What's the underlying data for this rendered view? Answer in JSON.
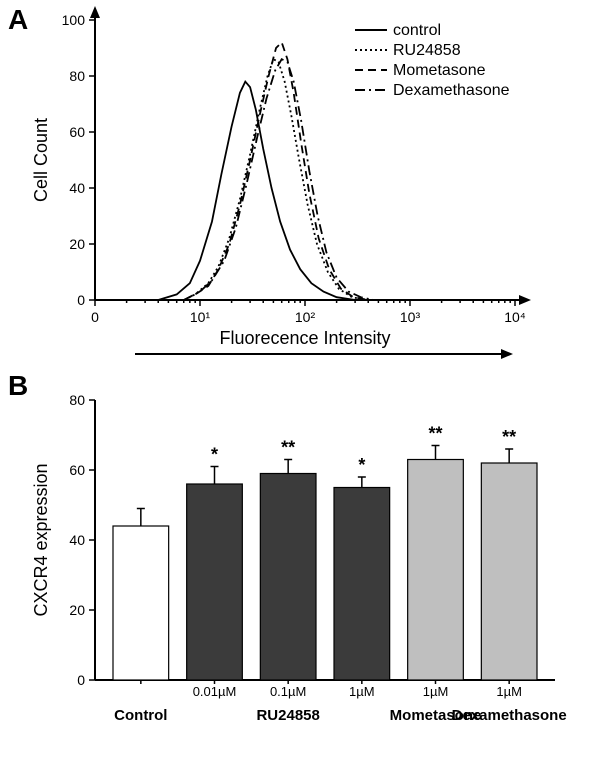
{
  "panelA": {
    "label": "A",
    "type": "line-histogram",
    "x_axis": {
      "title": "Fluorecence Intensity",
      "scale": "log",
      "lim": [
        1,
        10000
      ],
      "ticks": [
        1,
        10,
        100,
        1000,
        10000
      ],
      "tick_labels": [
        "0",
        "10¹",
        "10²",
        "10³",
        "10⁴"
      ]
    },
    "y_axis": {
      "title": "Cell Count",
      "scale": "linear",
      "lim": [
        0,
        100
      ],
      "ticks": [
        0,
        20,
        40,
        60,
        80,
        100
      ]
    },
    "background_color": "#ffffff",
    "axis_color": "#000000",
    "line_width": 1.8,
    "legend": {
      "position": "top-right",
      "items": [
        {
          "label": "control",
          "dash": "solid"
        },
        {
          "label": "RU24858",
          "dash": "dotted"
        },
        {
          "label": "Mometasone",
          "dash": "dashed"
        },
        {
          "label": "Dexamethasone",
          "dash": "dashdot"
        }
      ]
    },
    "series": [
      {
        "name": "control",
        "dash": "solid",
        "color": "#000000",
        "points": [
          [
            4,
            0
          ],
          [
            6,
            2
          ],
          [
            8,
            6
          ],
          [
            10,
            14
          ],
          [
            13,
            28
          ],
          [
            16,
            45
          ],
          [
            20,
            62
          ],
          [
            24,
            74
          ],
          [
            27,
            78
          ],
          [
            30,
            76
          ],
          [
            34,
            68
          ],
          [
            40,
            54
          ],
          [
            48,
            40
          ],
          [
            58,
            28
          ],
          [
            72,
            18
          ],
          [
            90,
            11
          ],
          [
            115,
            6
          ],
          [
            150,
            3
          ],
          [
            200,
            1
          ],
          [
            300,
            0
          ]
        ]
      },
      {
        "name": "RU24858",
        "dash": "dotted",
        "color": "#000000",
        "points": [
          [
            7,
            0
          ],
          [
            9,
            2
          ],
          [
            12,
            6
          ],
          [
            15,
            12
          ],
          [
            19,
            22
          ],
          [
            24,
            36
          ],
          [
            30,
            52
          ],
          [
            37,
            68
          ],
          [
            44,
            80
          ],
          [
            50,
            86
          ],
          [
            56,
            85
          ],
          [
            64,
            78
          ],
          [
            74,
            66
          ],
          [
            88,
            50
          ],
          [
            106,
            34
          ],
          [
            130,
            20
          ],
          [
            165,
            10
          ],
          [
            210,
            4
          ],
          [
            280,
            1
          ],
          [
            380,
            0
          ]
        ]
      },
      {
        "name": "Mometasone",
        "dash": "dashed",
        "color": "#000000",
        "points": [
          [
            7,
            0
          ],
          [
            9,
            2
          ],
          [
            12,
            5
          ],
          [
            15,
            11
          ],
          [
            19,
            20
          ],
          [
            24,
            34
          ],
          [
            30,
            50
          ],
          [
            37,
            66
          ],
          [
            45,
            80
          ],
          [
            53,
            90
          ],
          [
            60,
            92
          ],
          [
            68,
            86
          ],
          [
            78,
            74
          ],
          [
            92,
            56
          ],
          [
            110,
            38
          ],
          [
            135,
            22
          ],
          [
            170,
            11
          ],
          [
            220,
            4
          ],
          [
            290,
            1
          ],
          [
            400,
            0
          ]
        ]
      },
      {
        "name": "Dexamethasone",
        "dash": "dashdot",
        "color": "#000000",
        "points": [
          [
            7,
            0
          ],
          [
            10,
            3
          ],
          [
            13,
            7
          ],
          [
            17,
            14
          ],
          [
            22,
            26
          ],
          [
            28,
            42
          ],
          [
            35,
            58
          ],
          [
            43,
            72
          ],
          [
            52,
            82
          ],
          [
            60,
            86
          ],
          [
            68,
            85
          ],
          [
            78,
            78
          ],
          [
            92,
            64
          ],
          [
            110,
            46
          ],
          [
            132,
            30
          ],
          [
            160,
            17
          ],
          [
            200,
            8
          ],
          [
            260,
            3
          ],
          [
            340,
            1
          ],
          [
            450,
            0
          ]
        ]
      }
    ]
  },
  "panelB": {
    "label": "B",
    "type": "bar",
    "y_axis": {
      "title": "CXCR4 expression",
      "lim": [
        0,
        80
      ],
      "ticks": [
        0,
        20,
        40,
        60,
        80
      ]
    },
    "background_color": "#ffffff",
    "axis_color": "#000000",
    "bar_border_color": "#000000",
    "bar_border_width": 1.2,
    "error_cap_width": 8,
    "title_fontsize": 18,
    "label_fontsize": 13,
    "group_label_fontsize": 15,
    "bars": [
      {
        "group": "Control",
        "sub": "",
        "value": 44,
        "err": 5,
        "fill": "#ffffff",
        "sig": ""
      },
      {
        "group": "RU24858",
        "sub": "0.01µM",
        "value": 56,
        "err": 5,
        "fill": "#3b3b3b",
        "sig": "*"
      },
      {
        "group": "RU24858",
        "sub": "0.1µM",
        "value": 59,
        "err": 4,
        "fill": "#3b3b3b",
        "sig": "**"
      },
      {
        "group": "RU24858",
        "sub": "1µM",
        "value": 55,
        "err": 3,
        "fill": "#3b3b3b",
        "sig": "*"
      },
      {
        "group": "Mometasone",
        "sub": "1µM",
        "value": 63,
        "err": 4,
        "fill": "#bfbfbf",
        "sig": "**"
      },
      {
        "group": "Dexamethasone",
        "sub": "1µM",
        "value": 62,
        "err": 4,
        "fill": "#bfbfbf",
        "sig": "**"
      }
    ],
    "group_labels": [
      "Control",
      "RU24858",
      "Mometasone",
      "Dexamethasone"
    ]
  }
}
